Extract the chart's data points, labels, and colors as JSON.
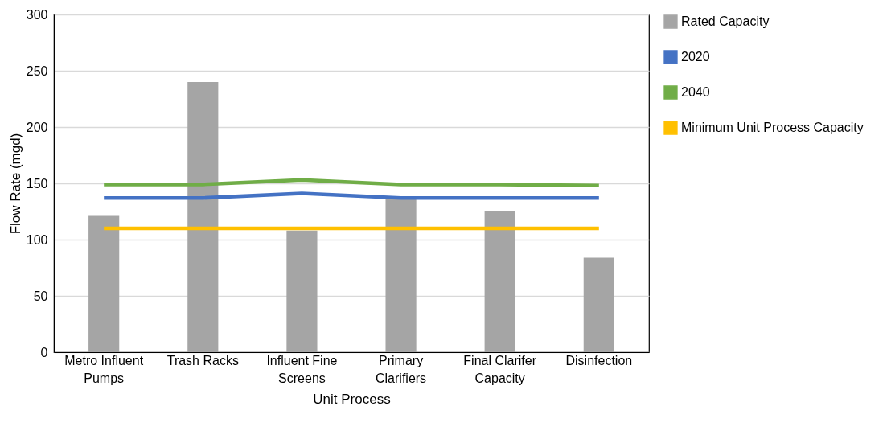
{
  "chart_data": {
    "type": "bar",
    "xlabel": "Unit Process",
    "ylabel": "Flow Rate (mgd)",
    "categories": [
      "Metro Influent Pumps",
      "Trash Racks",
      "Influent Fine Screens",
      "Primary Clarifiers",
      "Final Clarifer Capacity",
      "Disinfection"
    ],
    "series": [
      {
        "name": "Rated Capacity",
        "color": "#a5a5a5",
        "values": [
          121,
          240,
          108,
          136,
          125,
          84
        ]
      },
      {
        "name": "2020",
        "type": "line",
        "color": "#4472c4",
        "values": [
          137,
          137,
          141,
          137,
          137,
          137
        ]
      },
      {
        "name": "2040",
        "type": "line",
        "color": "#70ad47",
        "values": [
          149,
          149,
          153,
          149,
          149,
          148
        ]
      },
      {
        "name": "Minimum Unit Process Capacity",
        "type": "line",
        "color": "#ffc000",
        "values": [
          110,
          110,
          110,
          110,
          110,
          110
        ]
      }
    ],
    "ylim": [
      0,
      300
    ],
    "yticks": [
      0,
      50,
      100,
      150,
      200,
      250,
      300
    ],
    "grid": "y",
    "legend": "right",
    "marker": "none",
    "line_style": "solid"
  }
}
